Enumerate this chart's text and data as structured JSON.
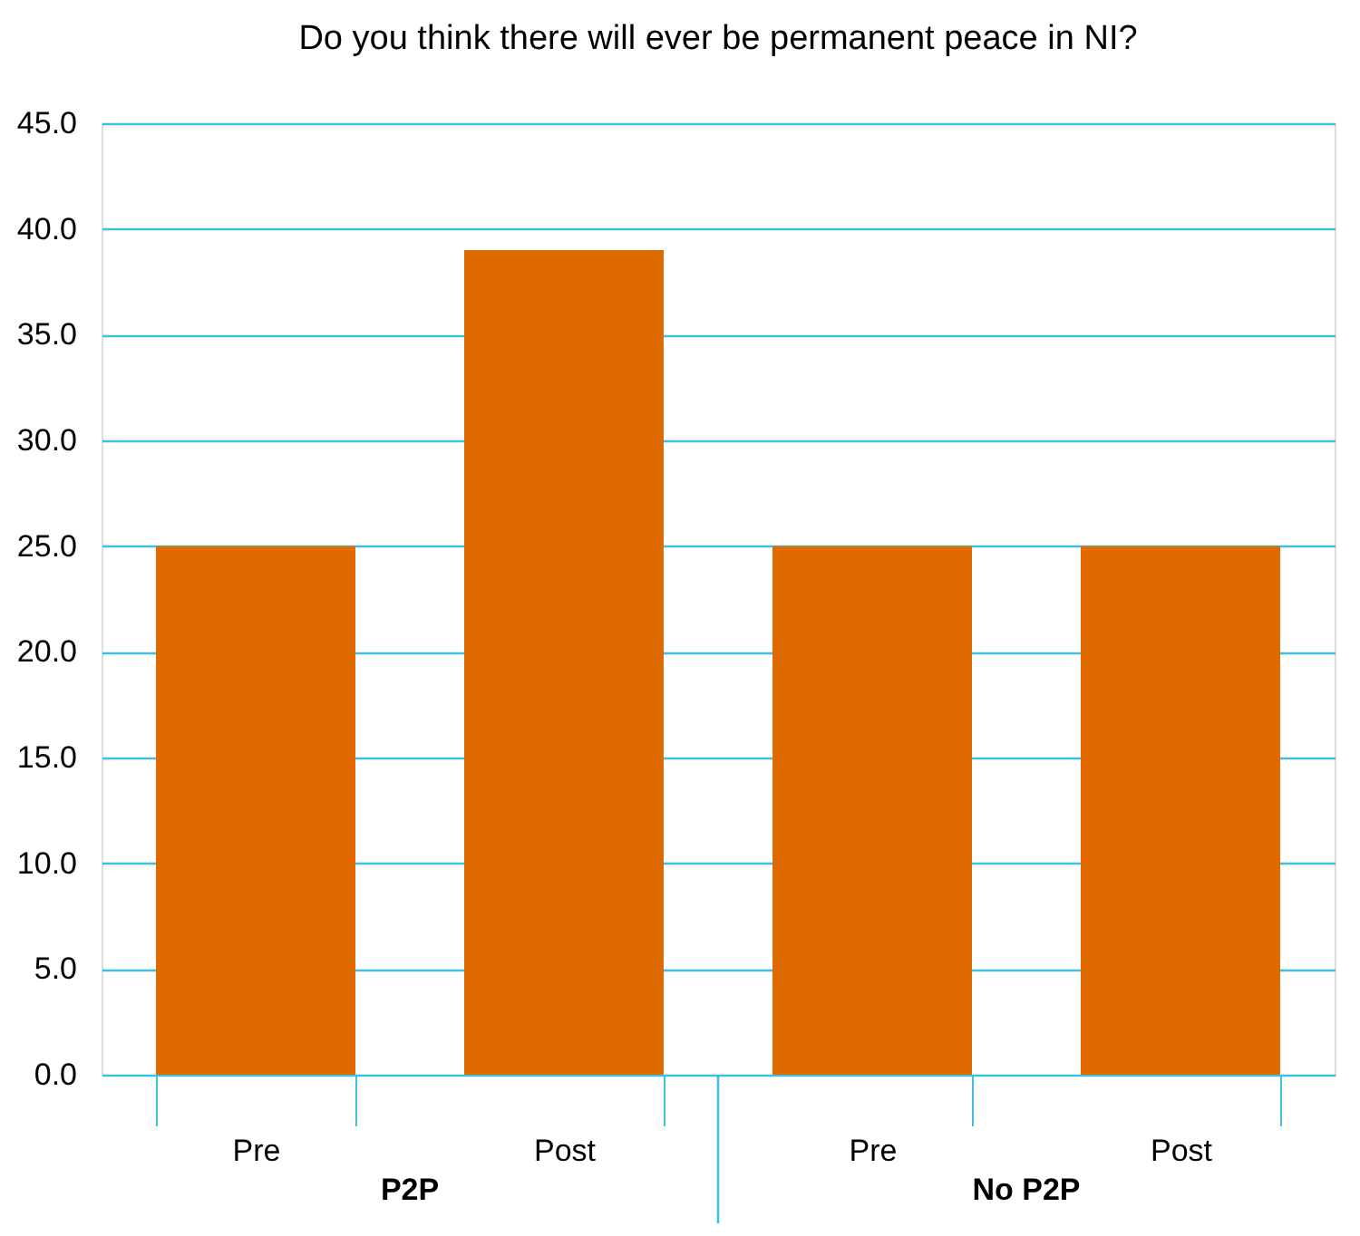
{
  "chart_data": {
    "type": "bar",
    "title": "Do you think there will ever be permanent peace in NI?",
    "categories": [
      "Pre",
      "Post",
      "Pre",
      "Post"
    ],
    "values": [
      25,
      39,
      25,
      25
    ],
    "color": "#e06a00",
    "ylim": [
      0,
      45
    ],
    "yticks": [
      {
        "value": 0,
        "label": "0.0"
      },
      {
        "value": 5,
        "label": "5.0"
      },
      {
        "value": 10,
        "label": "10.0"
      },
      {
        "value": 15,
        "label": "15.0"
      },
      {
        "value": 20,
        "label": "20.0"
      },
      {
        "value": 25,
        "label": "25.0"
      },
      {
        "value": 30,
        "label": "30.0"
      },
      {
        "value": 35,
        "label": "35.0"
      },
      {
        "value": 40,
        "label": "40.0"
      },
      {
        "value": 45,
        "label": "45.0"
      }
    ],
    "grid": "y",
    "annotations": [
      "P2P",
      "No P2P"
    ]
  }
}
